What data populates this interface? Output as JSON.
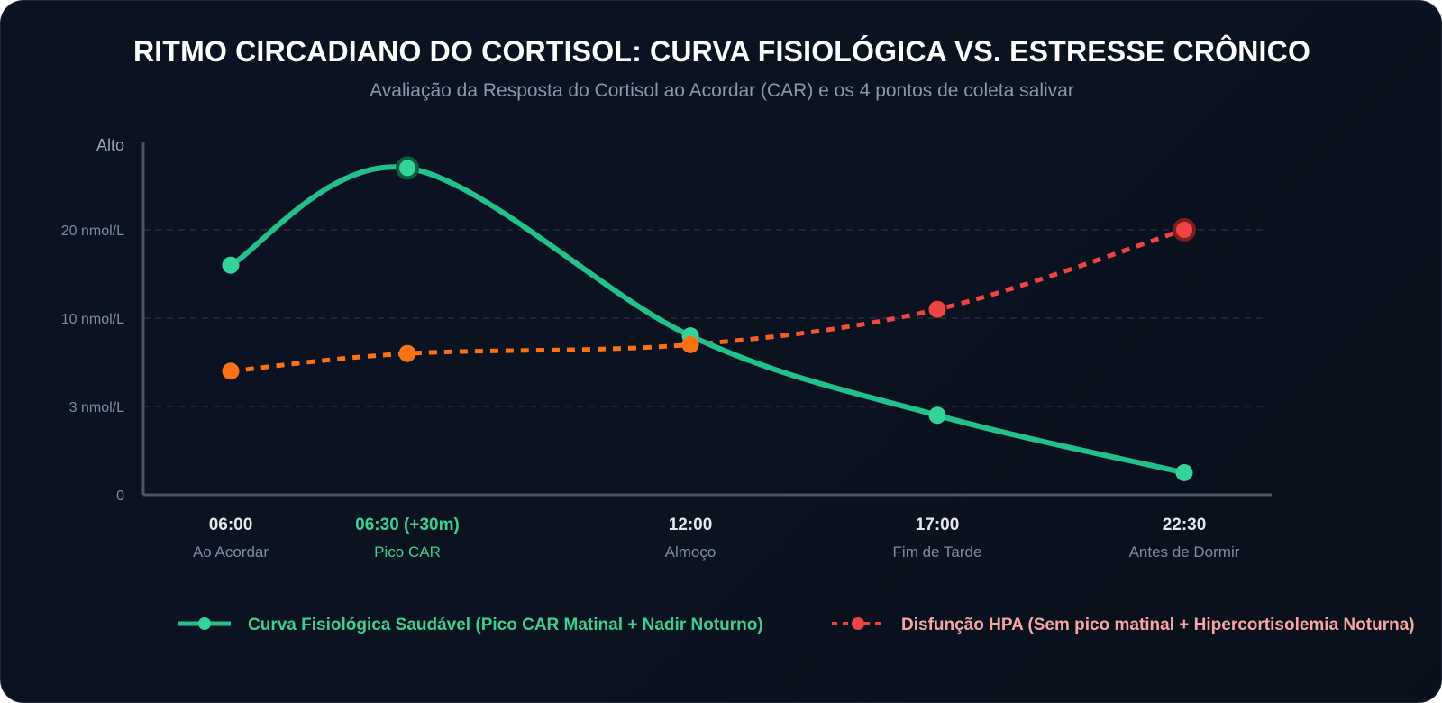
{
  "title": "RITMO CIRCADIANO DO CORTISOL: CURVA FISIOLÓGICA VS. ESTRESSE CRÔNICO",
  "subtitle": "Avaliação da Resposta do Cortisol ao Acordar (CAR) e os 4 pontos de coleta salivar",
  "colors": {
    "healthy": "#22c08a",
    "healthy_point": "#34d399",
    "dysfunction": "#ef4444",
    "dysfunction_early": "#f97316",
    "axis": "#4b5563",
    "grid": "#2a3444"
  },
  "chart_data": {
    "type": "line",
    "title": "RITMO CIRCADIANO DO CORTISOL: CURVA FISIOLÓGICA VS. ESTRESSE CRÔNICO",
    "subtitle": "Avaliação da Resposta do Cortisol ao Acordar (CAR) e os 4 pontos de coleta salivar",
    "y_ticks": [
      "0",
      "3 nmol/L",
      "10 nmol/L",
      "20 nmol/L",
      "Alto"
    ],
    "y_tick_levels": [
      0,
      1,
      2,
      3,
      4
    ],
    "ylim": [
      0,
      4
    ],
    "grid": "horizontal dashed",
    "categories": [
      {
        "time": "06:00",
        "label": "Ao Acordar",
        "highlight": false
      },
      {
        "time": "06:30 (+30m)",
        "label": "Pico CAR",
        "highlight": true
      },
      {
        "time": "12:00",
        "label": "Almoço",
        "highlight": false
      },
      {
        "time": "17:00",
        "label": "Fim de Tarde",
        "highlight": false
      },
      {
        "time": "22:30",
        "label": "Antes de Dormir",
        "highlight": false
      }
    ],
    "x_hours": [
      6.0,
      6.5,
      12.0,
      17.0,
      22.5
    ],
    "series": [
      {
        "name": "Curva Fisiológica Saudável (Pico CAR Matinal + Nadir Noturno)",
        "style": "solid",
        "values": [
          2.6,
          3.7,
          1.8,
          0.9,
          0.25
        ]
      },
      {
        "name": "Disfunção HPA (Sem pico matinal + Hipercortisolemia Noturna)",
        "style": "dotted",
        "values": [
          1.4,
          1.6,
          1.7,
          2.1,
          3.0
        ]
      }
    ],
    "legend_position": "bottom"
  }
}
